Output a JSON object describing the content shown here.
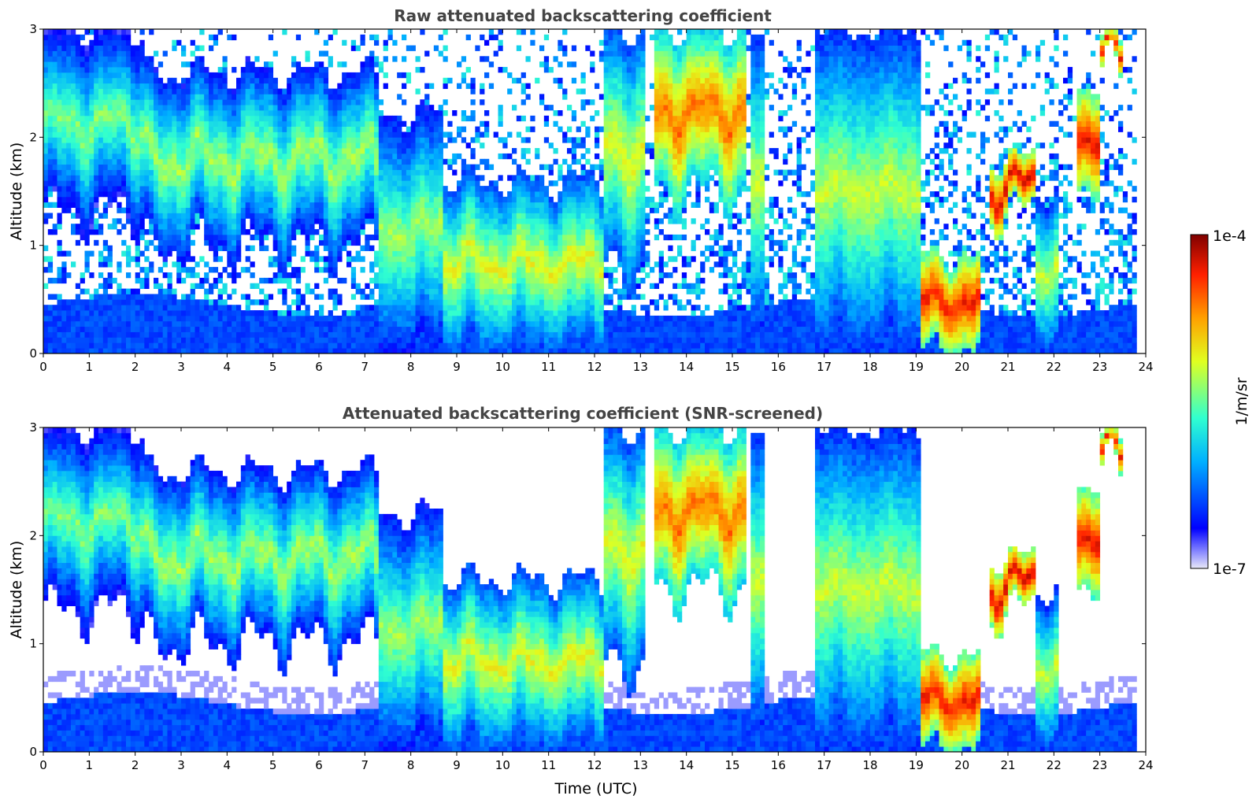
{
  "chart_data": [
    {
      "type": "heatmap",
      "title": "Raw attenuated backscattering coefficient",
      "xlabel": "",
      "ylabel": "Altitude (km)",
      "xlim": [
        0,
        24
      ],
      "ylim": [
        0,
        3
      ],
      "xticks": [
        "0",
        "1",
        "2",
        "3",
        "4",
        "5",
        "6",
        "7",
        "8",
        "9",
        "10",
        "11",
        "12",
        "13",
        "14",
        "15",
        "16",
        "17",
        "18",
        "19",
        "20",
        "21",
        "22",
        "23",
        "24"
      ],
      "yticks": [
        "0",
        "1",
        "2",
        "3"
      ],
      "z_range": [
        1e-07,
        0.0001
      ],
      "z_scale": "log",
      "features": [
        {
          "t": [
            0.0,
            2.2
          ],
          "base_km": 1.3,
          "top_km": 3.0,
          "log_peak": -5.4
        },
        {
          "t": [
            2.2,
            7.3
          ],
          "base_km": 1.0,
          "top_km": 2.6,
          "log_peak": -5.3
        },
        {
          "t": [
            7.3,
            8.7
          ],
          "base_km": 0.0,
          "top_km": 2.2,
          "log_peak": -5.3
        },
        {
          "t": [
            8.7,
            12.2
          ],
          "base_km": 0.0,
          "top_km": 1.6,
          "log_peak": -5.1
        },
        {
          "t": [
            12.2,
            13.1
          ],
          "base_km": 0.8,
          "top_km": 3.0,
          "log_peak": -5.1
        },
        {
          "t": [
            13.3,
            15.3
          ],
          "base_km": 1.5,
          "top_km": 3.0,
          "log_peak": -4.6
        },
        {
          "t": [
            15.4,
            15.7
          ],
          "base_km": 0.3,
          "top_km": 3.0,
          "log_peak": -5.2
        },
        {
          "t": [
            16.8,
            19.1
          ],
          "base_km": 0.0,
          "top_km": 3.0,
          "log_peak": -5.2
        },
        {
          "t": [
            19.1,
            20.4
          ],
          "base_km": 0.0,
          "top_km": 0.9,
          "log_peak": -4.3
        },
        {
          "t": [
            20.6,
            21.6
          ],
          "base_km": 1.3,
          "top_km": 1.8,
          "log_peak": -4.2
        },
        {
          "t": [
            21.6,
            22.1
          ],
          "base_km": 0.0,
          "top_km": 1.5,
          "log_peak": -5.2
        },
        {
          "t": [
            22.5,
            23.0
          ],
          "base_km": 1.6,
          "top_km": 2.5,
          "log_peak": -4.3
        },
        {
          "t": [
            23.0,
            23.5
          ],
          "base_km": 2.6,
          "top_km": 2.9,
          "log_peak": -4.3
        }
      ]
    },
    {
      "type": "heatmap",
      "title": "Attenuated backscattering coefficient (SNR-screened)",
      "xlabel": "Time (UTC)",
      "ylabel": "Altitude (km)",
      "xlim": [
        0,
        24
      ],
      "ylim": [
        0,
        3
      ],
      "xticks": [
        "0",
        "1",
        "2",
        "3",
        "4",
        "5",
        "6",
        "7",
        "8",
        "9",
        "10",
        "11",
        "12",
        "13",
        "14",
        "15",
        "16",
        "17",
        "18",
        "19",
        "20",
        "21",
        "22",
        "23",
        "24"
      ],
      "yticks": [
        "0",
        "1",
        "2",
        "3"
      ],
      "z_range": [
        1e-07,
        0.0001
      ],
      "z_scale": "log",
      "features": [
        {
          "t": [
            0.0,
            2.2
          ],
          "base_km": 1.3,
          "top_km": 3.0,
          "log_peak": -5.4
        },
        {
          "t": [
            2.2,
            7.3
          ],
          "base_km": 1.0,
          "top_km": 2.6,
          "log_peak": -5.3
        },
        {
          "t": [
            7.3,
            8.7
          ],
          "base_km": 0.0,
          "top_km": 2.2,
          "log_peak": -5.3
        },
        {
          "t": [
            8.7,
            12.2
          ],
          "base_km": 0.0,
          "top_km": 1.6,
          "log_peak": -5.1
        },
        {
          "t": [
            12.2,
            13.1
          ],
          "base_km": 0.8,
          "top_km": 3.0,
          "log_peak": -5.1
        },
        {
          "t": [
            13.3,
            15.3
          ],
          "base_km": 1.5,
          "top_km": 3.0,
          "log_peak": -4.6
        },
        {
          "t": [
            15.4,
            15.7
          ],
          "base_km": 0.3,
          "top_km": 3.0,
          "log_peak": -5.2
        },
        {
          "t": [
            16.8,
            19.1
          ],
          "base_km": 0.0,
          "top_km": 3.0,
          "log_peak": -5.2
        },
        {
          "t": [
            19.1,
            20.4
          ],
          "base_km": 0.0,
          "top_km": 0.9,
          "log_peak": -4.3
        },
        {
          "t": [
            20.6,
            21.6
          ],
          "base_km": 1.3,
          "top_km": 1.8,
          "log_peak": -4.2
        },
        {
          "t": [
            21.6,
            22.1
          ],
          "base_km": 0.0,
          "top_km": 1.5,
          "log_peak": -5.2
        },
        {
          "t": [
            22.5,
            23.0
          ],
          "base_km": 1.6,
          "top_km": 2.5,
          "log_peak": -4.3
        },
        {
          "t": [
            23.0,
            23.5
          ],
          "base_km": 2.6,
          "top_km": 2.9,
          "log_peak": -4.3
        }
      ]
    }
  ],
  "colorbar": {
    "label": "1/m/sr",
    "max_label": "1e-4",
    "min_label": "1e-7",
    "colormap": "jet",
    "scale": "log",
    "colors": [
      "#e8e8f8",
      "#0000ff",
      "#00c0ff",
      "#40ffc0",
      "#ffff00",
      "#ff6000",
      "#a00000"
    ]
  }
}
